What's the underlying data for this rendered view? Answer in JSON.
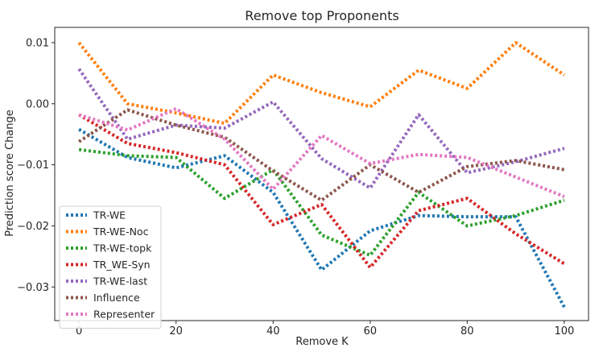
{
  "chart_data": {
    "type": "line",
    "title": "Remove top Proponents",
    "xlabel": "Remove K",
    "ylabel": "Prediction score Change",
    "xlim": [
      -5,
      105
    ],
    "ylim": [
      -0.0355,
      0.0125
    ],
    "xticks": [
      0,
      20,
      40,
      60,
      80,
      100
    ],
    "yticks": [
      -0.03,
      -0.02,
      -0.01,
      0.0,
      0.01
    ],
    "xtick_labels": [
      "0",
      "20",
      "40",
      "60",
      "80",
      "100"
    ],
    "ytick_labels": [
      "−0.03",
      "−0.02",
      "−0.01",
      "0.00",
      "0.01"
    ],
    "grid": false,
    "legend_position": "lower-left",
    "x": [
      0,
      10,
      20,
      30,
      40,
      50,
      60,
      70,
      80,
      90,
      100
    ],
    "series": [
      {
        "name": "TR-WE",
        "color": "#1f77b4",
        "values": [
          -0.0042,
          -0.0088,
          -0.0105,
          -0.0085,
          -0.0145,
          -0.0272,
          -0.0208,
          -0.0183,
          -0.0185,
          -0.0185,
          -0.0333
        ]
      },
      {
        "name": "TR-WE-Noc",
        "color": "#ff7f0e",
        "values": [
          0.01,
          0.0,
          -0.0015,
          -0.0032,
          0.0047,
          0.0018,
          -0.0005,
          0.0055,
          0.0025,
          0.01,
          0.0047
        ]
      },
      {
        "name": "TR-WE-topk",
        "color": "#2ca02c",
        "values": [
          -0.0075,
          -0.0085,
          -0.0088,
          -0.0155,
          -0.0108,
          -0.0215,
          -0.0248,
          -0.0145,
          -0.02,
          -0.0183,
          -0.0158
        ]
      },
      {
        "name": "TR_WE-Syn",
        "color": "#d62728",
        "values": [
          -0.0018,
          -0.0065,
          -0.008,
          -0.01,
          -0.0198,
          -0.0165,
          -0.0268,
          -0.0175,
          -0.0155,
          -0.0213,
          -0.0262
        ]
      },
      {
        "name": "TR-WE-last",
        "color": "#9467bd",
        "values": [
          0.0057,
          -0.0058,
          -0.0035,
          -0.004,
          0.0003,
          -0.009,
          -0.0138,
          -0.0018,
          -0.0113,
          -0.0095,
          -0.0073
        ]
      },
      {
        "name": "Influence",
        "color": "#8c564b",
        "values": [
          -0.0062,
          -0.001,
          -0.0035,
          -0.0055,
          -0.011,
          -0.0158,
          -0.01,
          -0.0145,
          -0.0103,
          -0.0093,
          -0.0108
        ]
      },
      {
        "name": "Representer",
        "color": "#e377c2",
        "values": [
          -0.0018,
          -0.0043,
          -0.0008,
          -0.0058,
          -0.014,
          -0.0052,
          -0.0098,
          -0.0083,
          -0.0088,
          -0.012,
          -0.0152
        ]
      }
    ]
  }
}
